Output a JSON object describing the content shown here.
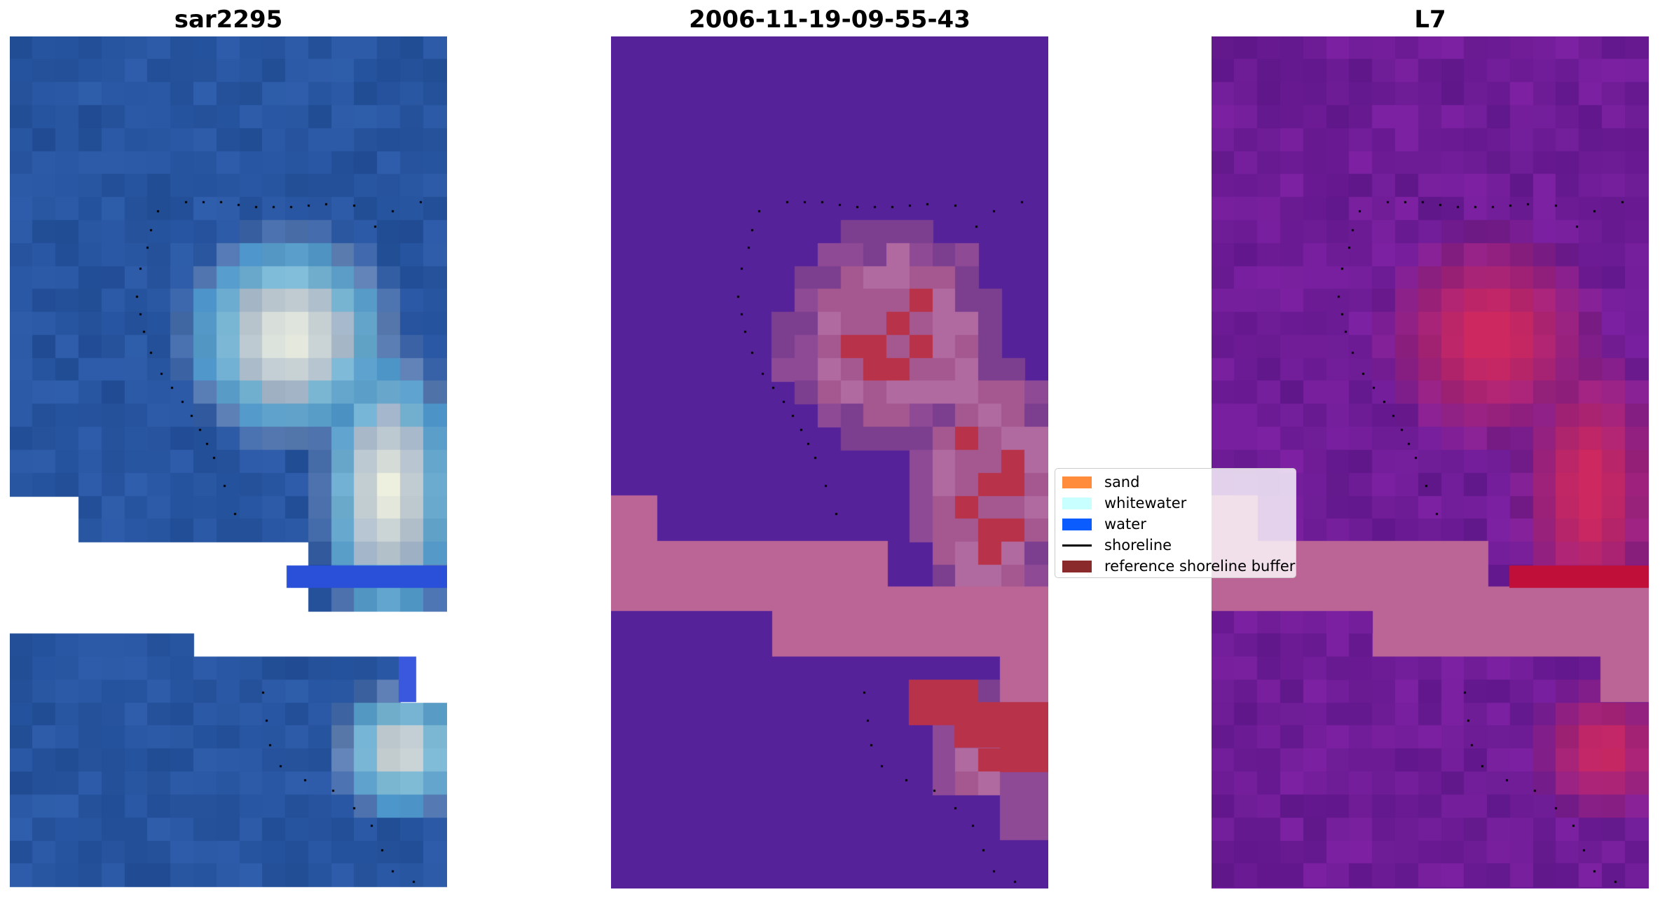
{
  "panels": [
    {
      "title": "sar2295"
    },
    {
      "title": "2006-11-19-09-55-43"
    },
    {
      "title": "L7"
    }
  ],
  "legend": {
    "items": [
      {
        "label": "sand",
        "color": "#ff8c3a",
        "kind": "patch"
      },
      {
        "label": "whitewater",
        "color": "#c8ffff",
        "kind": "patch"
      },
      {
        "label": "water",
        "color": "#0a5cff",
        "kind": "patch"
      },
      {
        "label": "shoreline",
        "color": "#000000",
        "kind": "line"
      },
      {
        "label": "reference shoreline buffer",
        "color": "#8b2a2a",
        "kind": "patch"
      }
    ]
  },
  "colors": {
    "background": "#ffffff",
    "classified_water": "#55229a",
    "classified_buffer_band": "#bb6496",
    "classified_land": "#b8324a",
    "rgb_water": "#2a55a0",
    "ndwi_low": "#6e1a9a",
    "ndwi_high": "#c8245a"
  }
}
